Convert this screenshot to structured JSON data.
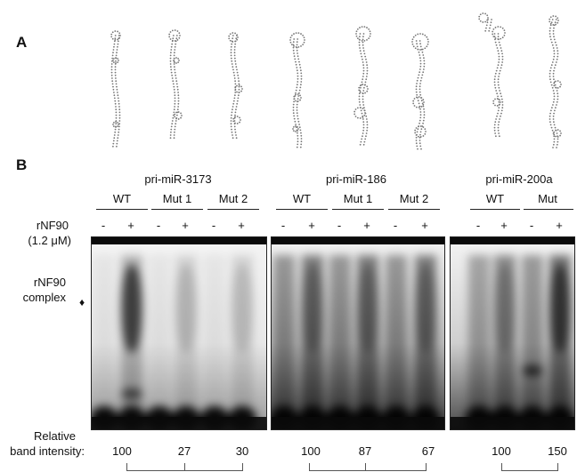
{
  "panels": {
    "a": "A",
    "b": "B"
  },
  "constructs": [
    "pri-miR-3173",
    "pri-miR-186",
    "pri-miR-200a"
  ],
  "variants": {
    "g1": [
      "WT",
      "Mut 1",
      "Mut 2"
    ],
    "g2": [
      "WT",
      "Mut 1",
      "Mut 2"
    ],
    "g3": [
      "WT",
      "Mut"
    ]
  },
  "lane_marks": {
    "minus": "-",
    "plus": "+"
  },
  "labels": {
    "protein": "rNF90",
    "concentration": "(1.2 μM)",
    "complex_line1": "rNF90",
    "complex_line2": "complex",
    "marker": "♦",
    "intensity_line1": "Relative",
    "intensity_line2": "band intensity:"
  },
  "intensities": {
    "g1": [
      "100",
      "27",
      "30"
    ],
    "g2": [
      "100",
      "87",
      "67"
    ],
    "g3": [
      "100",
      "150"
    ]
  },
  "colors": {
    "gel_background": "#f2f2f2",
    "band": "#0a0a0a",
    "structure": "#777777"
  }
}
